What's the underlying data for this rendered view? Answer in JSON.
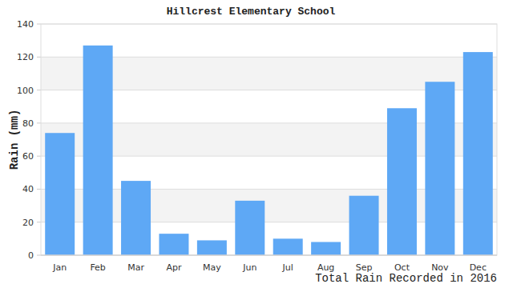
{
  "chart_data": {
    "type": "bar",
    "title": "Hillcrest Elementary School",
    "xlabel": "Total Rain Recorded in 2016",
    "ylabel": "Rain (mm)",
    "categories": [
      "Jan",
      "Feb",
      "Mar",
      "Apr",
      "May",
      "Jun",
      "Jul",
      "Aug",
      "Sep",
      "Oct",
      "Nov",
      "Dec"
    ],
    "values": [
      74,
      127,
      45,
      13,
      9,
      33,
      10,
      8,
      36,
      89,
      105,
      123
    ],
    "color": "#5ea8f5",
    "ylim": [
      0,
      140
    ],
    "yticks": [
      0,
      20,
      40,
      60,
      80,
      100,
      120,
      140
    ],
    "grid": true
  }
}
